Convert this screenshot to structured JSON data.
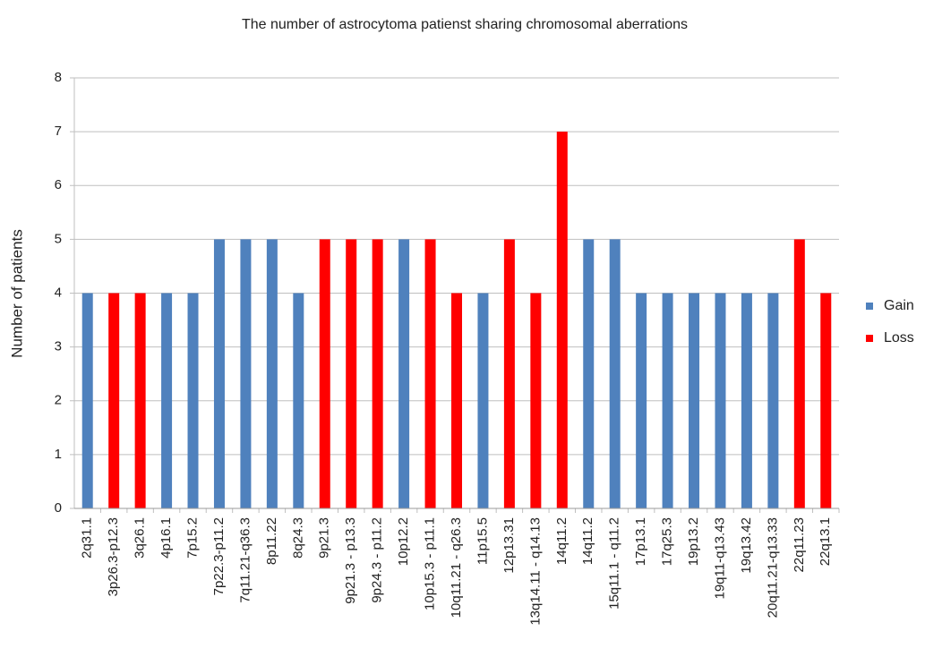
{
  "chart_data": {
    "type": "bar",
    "title": "The number of astrocytoma  patienst sharing chromosomal aberrations",
    "y_label": "Number of patients",
    "categories": [
      "2q31.1",
      "3p26.3-p12.3",
      "3q26.1",
      "4p16.1",
      "7p15.2",
      "7p22.3-p11.2",
      "7q11.21-q36.3",
      "8p11.22",
      "8q24.3",
      "9p21.3",
      "9p21.3 - p13.3",
      "9p24.3 - p11.2",
      "10p12.2",
      "10p15.3 - p11.1",
      "10q11.21 - q26.3",
      "11p15.5",
      "12p13.31",
      "13q14.11 - q14.13",
      "14q11.2",
      "14q11.2",
      "15q11.1 - q11.2",
      "17p13.1",
      "17q25.3",
      "19p13.2",
      "19q11-q13.43",
      "19q13.42",
      "20q11.21-q13.33",
      "22q11.23",
      "22q13.1"
    ],
    "series": [
      {
        "name": "Gain",
        "color": "#4f81bd",
        "values": [
          4,
          null,
          null,
          4,
          4,
          5,
          5,
          5,
          4,
          null,
          null,
          null,
          5,
          null,
          null,
          4,
          null,
          null,
          null,
          5,
          5,
          4,
          4,
          4,
          4,
          4,
          4,
          null,
          null
        ]
      },
      {
        "name": "Loss",
        "color": "#ff0000",
        "values": [
          null,
          4,
          4,
          null,
          null,
          null,
          null,
          null,
          null,
          5,
          5,
          5,
          null,
          5,
          4,
          null,
          5,
          4,
          7,
          null,
          null,
          null,
          null,
          null,
          null,
          null,
          null,
          5,
          4
        ]
      }
    ],
    "ylim": [
      0,
      8
    ],
    "yticks": [
      0,
      1,
      2,
      3,
      4,
      5,
      6,
      7,
      8
    ],
    "grid": true,
    "legend": "right"
  }
}
